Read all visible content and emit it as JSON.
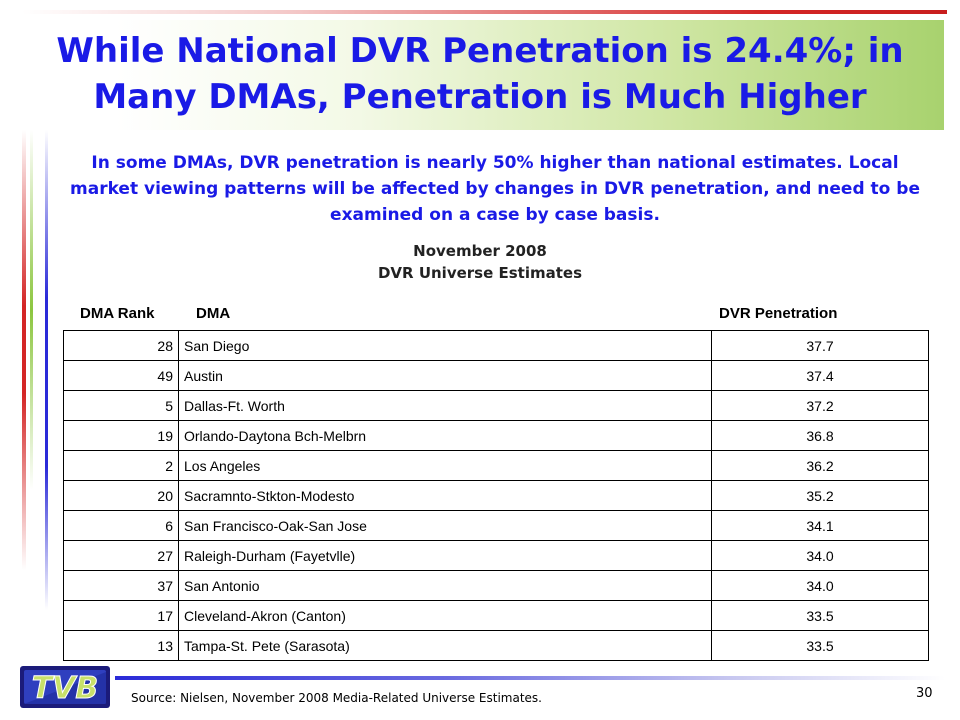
{
  "title": "While National DVR Penetration is 24.4%; in Many DMAs, Penetration is Much Higher",
  "subtitle": "In some DMAs, DVR penetration is nearly 50% higher than national estimates.  Local market viewing patterns will be affected by changes in DVR penetration, and need to be examined on a case by case basis.",
  "table": {
    "caption_line1": "November 2008",
    "caption_line2": "DVR Universe Estimates",
    "headers": [
      "DMA Rank",
      "DMA",
      "DVR Penetration"
    ],
    "rows": [
      {
        "rank": "28",
        "dma": "San Diego",
        "penetration": "37.7"
      },
      {
        "rank": "49",
        "dma": "Austin",
        "penetration": "37.4"
      },
      {
        "rank": "5",
        "dma": "Dallas-Ft. Worth",
        "penetration": "37.2"
      },
      {
        "rank": "19",
        "dma": "Orlando-Daytona Bch-Melbrn",
        "penetration": "36.8"
      },
      {
        "rank": "2",
        "dma": "Los Angeles",
        "penetration": "36.2"
      },
      {
        "rank": "20",
        "dma": "Sacramnto-Stkton-Modesto",
        "penetration": "35.2"
      },
      {
        "rank": "6",
        "dma": "San Francisco-Oak-San Jose",
        "penetration": "34.1"
      },
      {
        "rank": "27",
        "dma": "Raleigh-Durham (Fayetvlle)",
        "penetration": "34.0"
      },
      {
        "rank": "37",
        "dma": "San Antonio",
        "penetration": "34.0"
      },
      {
        "rank": "17",
        "dma": "Cleveland-Akron (Canton)",
        "penetration": "33.5"
      },
      {
        "rank": "13",
        "dma": "Tampa-St. Pete (Sarasota)",
        "penetration": "33.5"
      }
    ]
  },
  "footer": {
    "logo_text": "TVB",
    "source": "Source:  Nielsen, November 2008 Media-Related Universe Estimates.",
    "page_number": "30"
  },
  "colors": {
    "title": "#1a1ae6",
    "accent_red": "#d42626",
    "accent_green": "#8cc63f",
    "accent_blue": "#2a2ad8"
  }
}
